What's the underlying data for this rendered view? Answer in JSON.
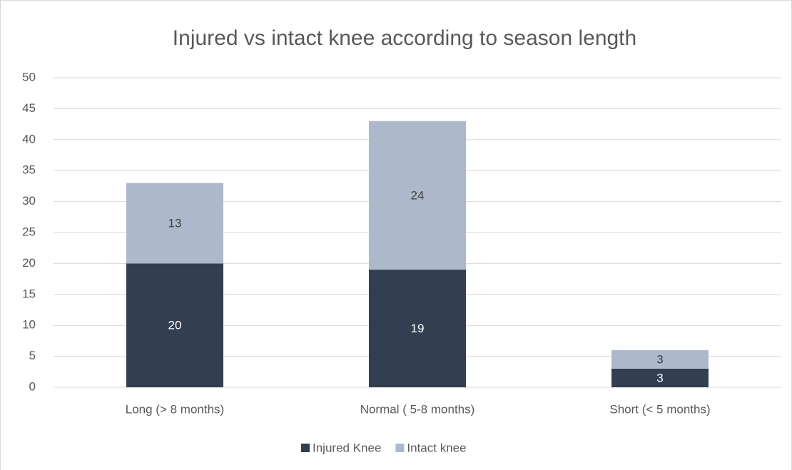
{
  "chart_data": {
    "type": "stacked_bar",
    "title": "Injured vs intact knee according to season length",
    "categories": [
      "Long (> 8 months)",
      "Normal ( 5-8 months)",
      "Short (< 5 months)"
    ],
    "series": [
      {
        "name": "Injured Knee",
        "color": "#333f50",
        "values": [
          20,
          19,
          3
        ]
      },
      {
        "name": "Intact knee",
        "color": "#adb9ca",
        "values": [
          13,
          24,
          3
        ]
      }
    ],
    "ylim": [
      0,
      50
    ],
    "yticks": [
      0,
      5,
      10,
      15,
      20,
      25,
      30,
      35,
      40,
      45,
      50
    ],
    "grid": true,
    "legend": "bottom"
  }
}
